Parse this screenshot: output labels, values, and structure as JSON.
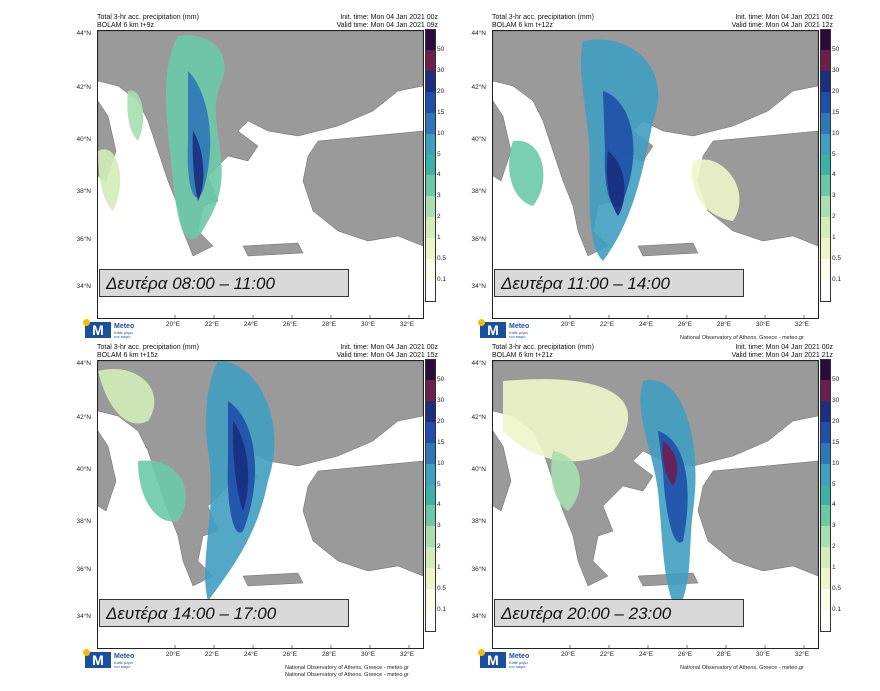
{
  "panels": [
    {
      "title_line1": "Total 3-hr acc. precipitation (mm)",
      "title_line2": "BOLAM 6 km t+9z",
      "init": "Init. time: Mon 04 Jan 2021 00z",
      "valid": "Valid time: Mon 04 Jan 2021 09z",
      "day_label": "Δευτέρα 08:00 – 11:00",
      "footer": ""
    },
    {
      "title_line1": "Total 3-hr acc. precipitation (mm)",
      "title_line2": "BOLAM 6 km t+12z",
      "init": "Init. time: Mon 04 Jan 2021 00z",
      "valid": "Valid time: Mon 04 Jan 2021 12z",
      "day_label": "Δευτέρα 11:00 – 14:00",
      "footer": "National Observatory of Athens, Greece - meteo.gr"
    },
    {
      "title_line1": "Total 3-hr acc. precipitation (mm)",
      "title_line2": "BOLAM 6 km t+15z",
      "init": "Init. time: Mon 04 Jan 2021 00z",
      "valid": "Valid time: Mon 04 Jan 2021 15z",
      "day_label": "Δευτέρα 14:00 – 17:00",
      "footer": "National Observatory of Athens, Greece - meteo.gr"
    },
    {
      "title_line1": "Total 3-hr acc. precipitation (mm)",
      "title_line2": "BOLAM 6 km t+21z",
      "init": "Init. time: Mon 04 Jan 2021 00z",
      "valid": "Valid time: Mon 04 Jan 2021 21z",
      "day_label": "Δευτέρα 20:00 – 23:00",
      "footer": "National Observatory of Athens, Greece - meteo.gr"
    }
  ],
  "top_footer": "National Observatory of Athens, Greece - meteo.gr",
  "lat_ticks": [
    "44°N",
    "42°N",
    "40°N",
    "38°N",
    "36°N",
    "34°N"
  ],
  "lon_ticks": [
    "20°E",
    "22°E",
    "24°E",
    "26°E",
    "28°E",
    "30°E",
    "32°E"
  ],
  "colorbar": {
    "labels": [
      "50",
      "30",
      "20",
      "15",
      "10",
      "5",
      "4",
      "3",
      "2",
      "1",
      "0.5",
      "0.1"
    ],
    "colors": [
      "#2b0a3d",
      "#6b1f4f",
      "#1a2f80",
      "#1f4fa8",
      "#2f78b8",
      "#3f9fc0",
      "#3fb0a8",
      "#6cc9a8",
      "#a7dfb0",
      "#d3edb8",
      "#eef5c8",
      "#fbfde8",
      "#ffffff"
    ]
  },
  "logo": {
    "brand": "Meteo",
    "tagline": "Κάθε μέρα τον καιρό"
  },
  "colors": {
    "land": "#9a9a9a",
    "sea": "#ffffff",
    "label_bg": "#d9d9d9"
  }
}
